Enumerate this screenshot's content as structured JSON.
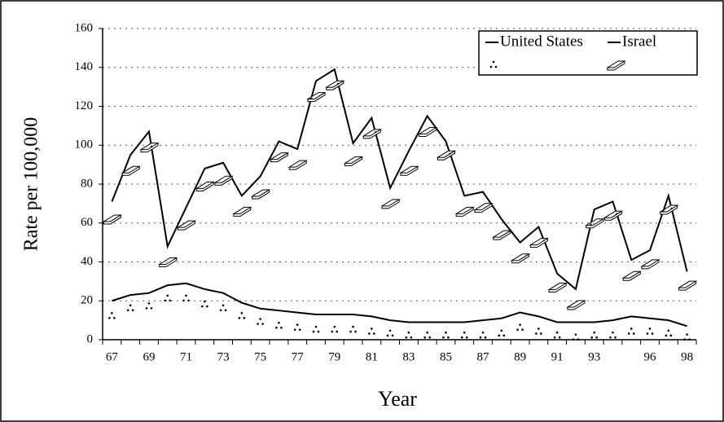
{
  "chart_data": {
    "type": "line",
    "x_label": "Year",
    "y_label": "Rate per 100,000",
    "categories": [
      "67",
      null,
      "69",
      null,
      "71",
      null,
      "73",
      null,
      "75",
      null,
      "77",
      null,
      "79",
      null,
      "81",
      null,
      "83",
      null,
      "85",
      null,
      "87",
      null,
      "89",
      null,
      "91",
      null,
      "93",
      null,
      null,
      "96",
      null,
      "98"
    ],
    "series": [
      {
        "name": "United States",
        "color": "#000000",
        "marker": "none",
        "values": [
          71,
          95,
          107,
          48,
          68,
          88,
          91,
          74,
          84,
          102,
          98,
          133,
          139,
          101,
          114,
          78,
          97,
          115,
          102,
          74,
          76,
          62,
          50,
          58,
          34,
          26,
          67,
          71,
          41,
          46,
          74,
          35
        ]
      },
      {
        "name": "Israel",
        "color": "#000000",
        "marker": "none",
        "values": [
          20,
          23,
          24,
          28,
          29,
          26,
          24,
          19,
          16,
          15,
          14,
          13,
          13,
          13,
          12,
          10,
          9,
          9,
          9,
          9,
          10,
          11,
          14,
          12,
          9,
          9,
          9,
          10,
          12,
          11,
          10,
          7
        ]
      },
      {
        "color": "#000000",
        "marker": "dots",
        "values": [
          12,
          16,
          17,
          21,
          21,
          18,
          16,
          12,
          9,
          7,
          6,
          5,
          5,
          5,
          4,
          3,
          2,
          2,
          2,
          2,
          2,
          3,
          6,
          4,
          2,
          1,
          2,
          2,
          4,
          4,
          3,
          1
        ]
      },
      {
        "color": "#000000",
        "marker": "brick",
        "values": [
          62,
          87,
          99,
          40,
          59,
          79,
          82,
          66,
          75,
          94,
          90,
          125,
          131,
          92,
          106,
          70,
          87,
          107,
          95,
          66,
          68,
          54,
          42,
          50,
          27,
          18,
          60,
          64,
          33,
          39,
          67,
          28
        ]
      }
    ],
    "ylim": [
      0,
      160
    ],
    "yticks": [
      0,
      20,
      40,
      60,
      80,
      100,
      120,
      140,
      160
    ],
    "grid": true,
    "legend": "upper right"
  }
}
